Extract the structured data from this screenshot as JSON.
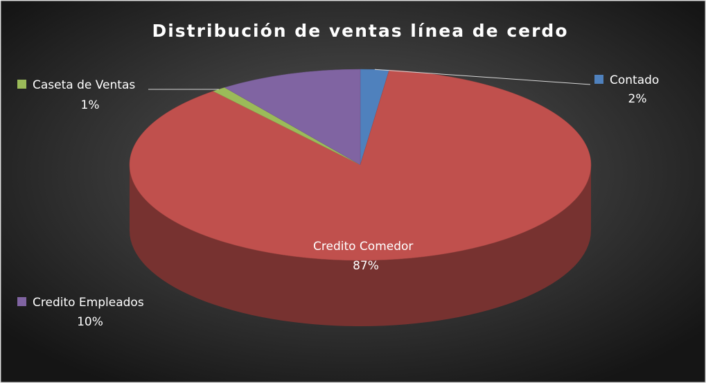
{
  "chart_data": {
    "type": "pie",
    "title": "Distribución de ventas línea de cerdo",
    "categories": [
      "Contado",
      "Credito Comedor",
      "Caseta de Ventas",
      "Credito Empleados"
    ],
    "values": [
      2,
      87,
      1,
      10
    ],
    "value_labels": [
      "2%",
      "87%",
      "1%",
      "10%"
    ],
    "colors": [
      "#4f81bd",
      "#c0504d",
      "#9bbb59",
      "#8064a2"
    ]
  }
}
